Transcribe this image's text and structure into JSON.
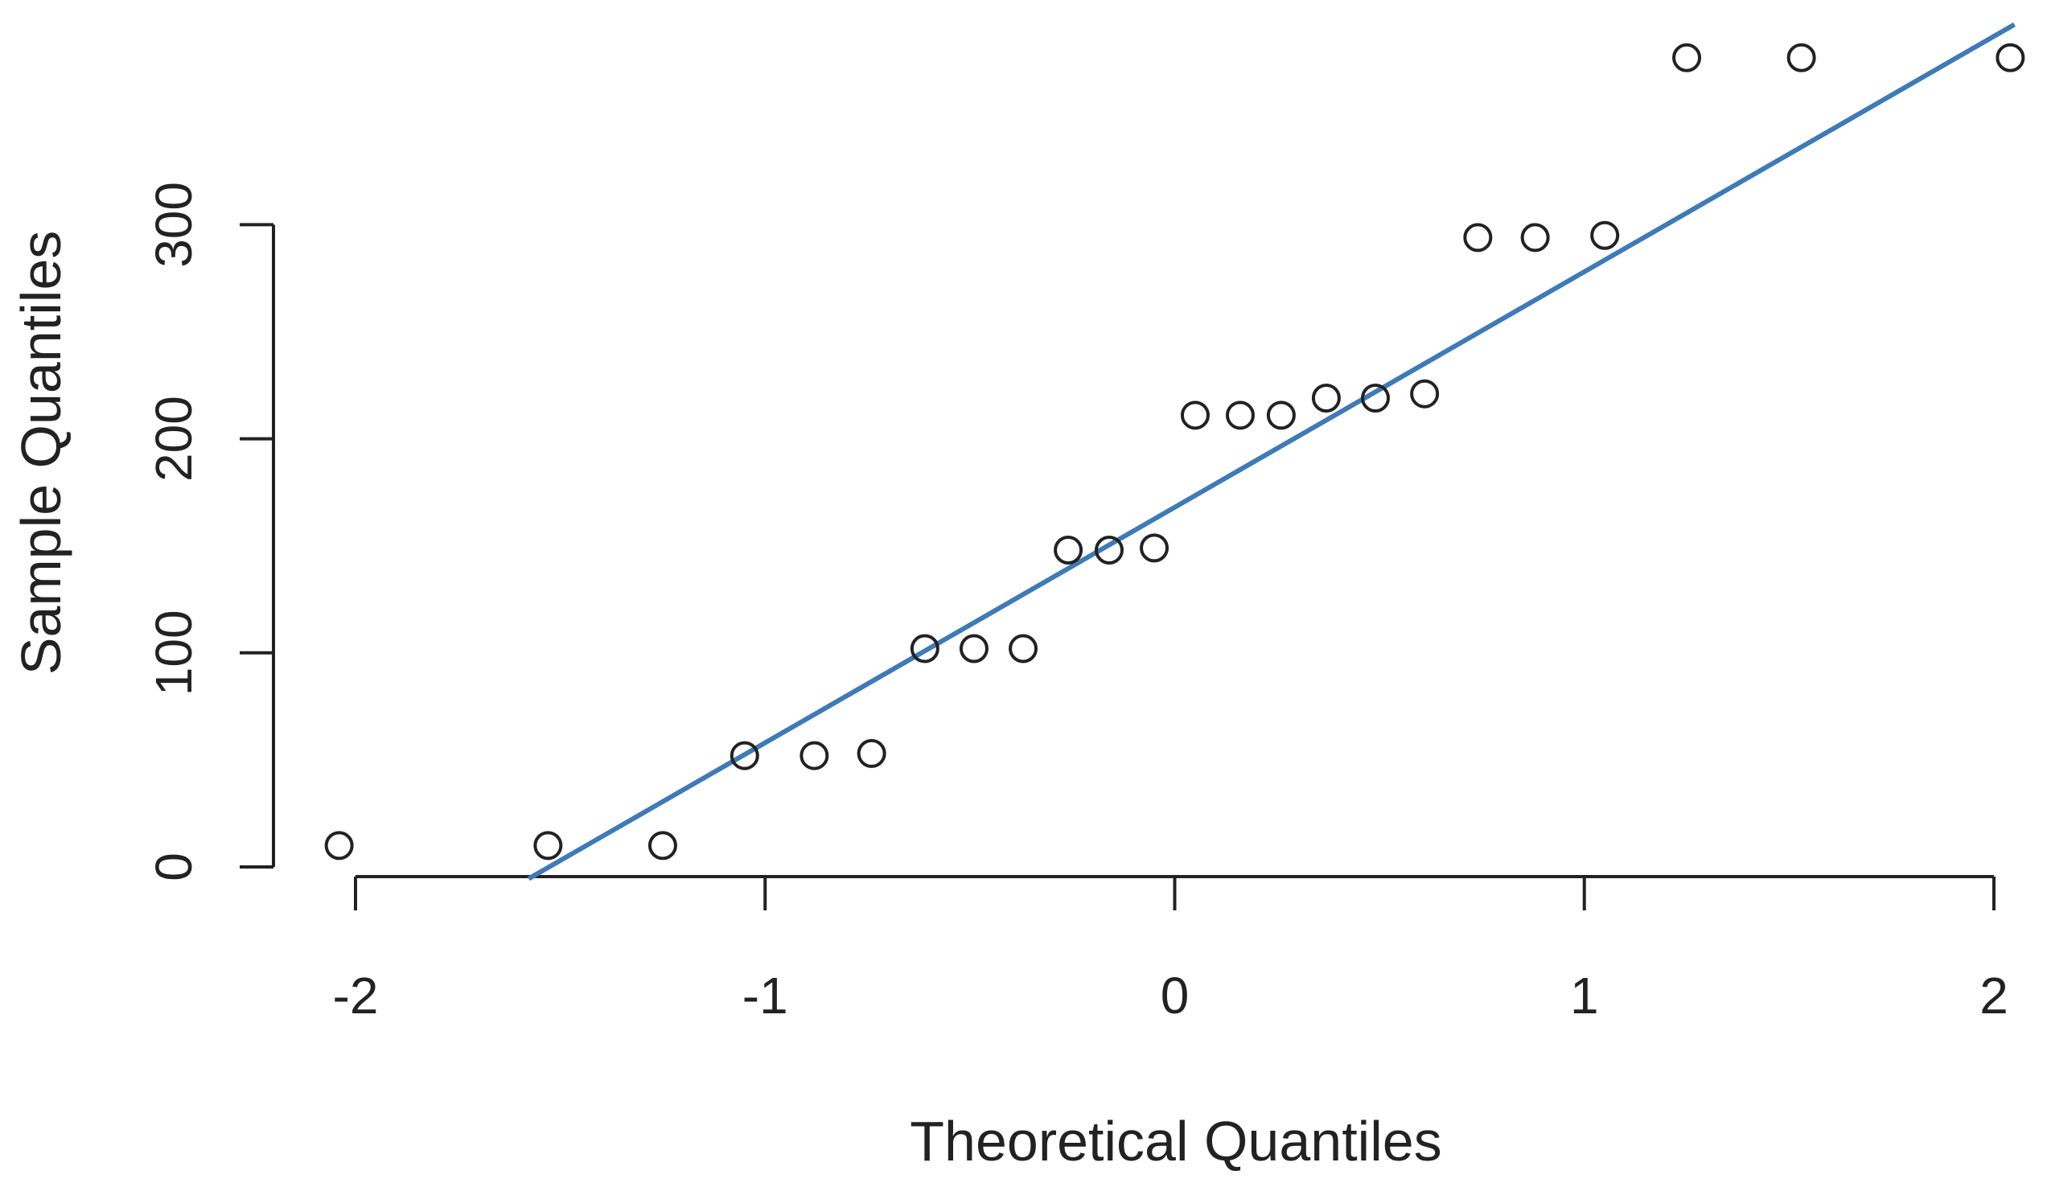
{
  "chart_data": {
    "type": "scatter",
    "title": "",
    "xlabel": "Theoretical Quantiles",
    "ylabel": "Sample Quantiles",
    "xlim": [
      -2.05,
      2.05
    ],
    "ylim": [
      0,
      380
    ],
    "xticks": [
      -2,
      -1,
      0,
      1,
      2
    ],
    "xtick_labels": [
      "-2",
      "-1",
      "0",
      "1",
      "2"
    ],
    "yticks": [
      0,
      100,
      200,
      300
    ],
    "ytick_labels": [
      "0",
      "100",
      "200",
      "300"
    ],
    "grid": false,
    "legend": null,
    "series": [
      {
        "type": "scatter",
        "marker": "open-circle",
        "color": "#222222",
        "points": [
          {
            "x": -2.04,
            "y": 10
          },
          {
            "x": -1.53,
            "y": 10
          },
          {
            "x": -1.25,
            "y": 10
          },
          {
            "x": -1.05,
            "y": 52
          },
          {
            "x": -0.88,
            "y": 52
          },
          {
            "x": -0.74,
            "y": 53
          },
          {
            "x": -0.61,
            "y": 102
          },
          {
            "x": -0.49,
            "y": 102
          },
          {
            "x": -0.37,
            "y": 102
          },
          {
            "x": -0.26,
            "y": 148
          },
          {
            "x": -0.16,
            "y": 148
          },
          {
            "x": -0.05,
            "y": 149
          },
          {
            "x": 0.05,
            "y": 211
          },
          {
            "x": 0.16,
            "y": 211
          },
          {
            "x": 0.26,
            "y": 211
          },
          {
            "x": 0.37,
            "y": 219
          },
          {
            "x": 0.49,
            "y": 219
          },
          {
            "x": 0.61,
            "y": 221
          },
          {
            "x": 0.74,
            "y": 294
          },
          {
            "x": 0.88,
            "y": 294
          },
          {
            "x": 1.05,
            "y": 295
          },
          {
            "x": 1.25,
            "y": 378
          },
          {
            "x": 1.53,
            "y": 378
          },
          {
            "x": 2.04,
            "y": 378
          }
        ]
      },
      {
        "type": "line",
        "color": "#3E7BB6",
        "slope": 110,
        "intercept": 168
      }
    ]
  }
}
